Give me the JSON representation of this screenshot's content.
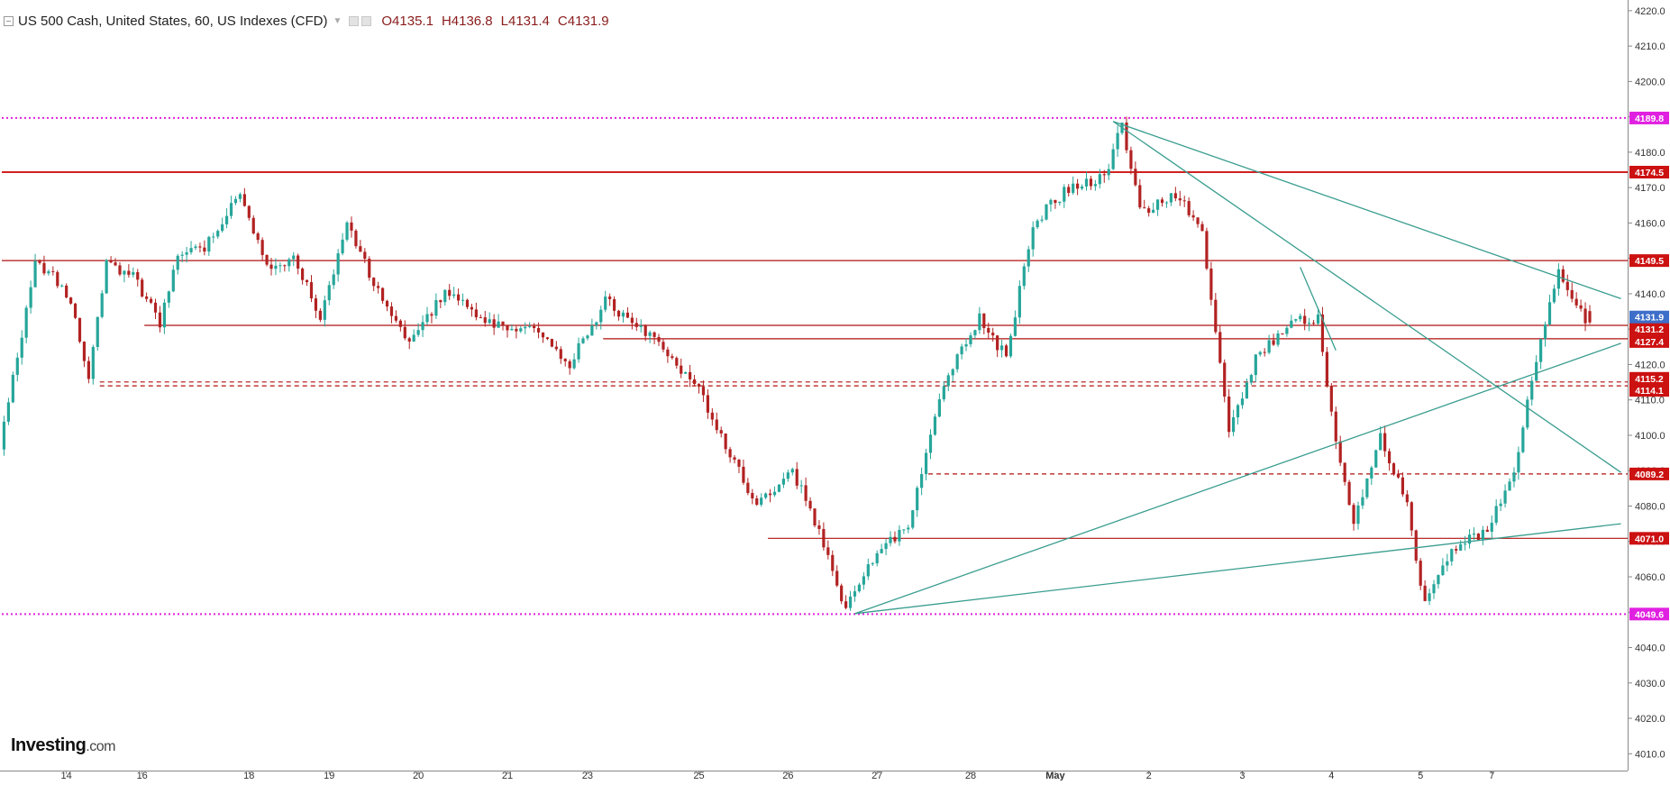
{
  "header": {
    "symbol": "US 500 Cash, United States, 60, US Indexes (CFD)",
    "open": "O4135.1",
    "high": "H4136.8",
    "low": "L4131.4",
    "close": "C4131.9"
  },
  "logo": {
    "brand": "Investing",
    "suffix": ".com"
  },
  "colors": {
    "up": "#26a69a",
    "down": "#b22222",
    "resistance": "#cc0000",
    "extreme": "#e020e0",
    "trendline": "#3a9d8f",
    "last_price": "#3d6ec9"
  },
  "chart_data": {
    "type": "candlestick",
    "title": "US 500 Cash, United States, 60, US Indexes (CFD)",
    "timeframe": "60",
    "ohlc_last": {
      "open": 4135.1,
      "high": 4136.8,
      "low": 4131.4,
      "close": 4131.9
    },
    "x_tick_labels": [
      "14",
      "16",
      "18",
      "19",
      "20",
      "21",
      "23",
      "25",
      "26",
      "27",
      "28",
      "May",
      "2",
      "3",
      "4",
      "5",
      "7"
    ],
    "y_ticks": [
      4010.0,
      4020.0,
      4030.0,
      4040.0,
      4050.0,
      4060.0,
      4070.0,
      4080.0,
      4090.0,
      4100.0,
      4110.0,
      4120.0,
      4130.0,
      4140.0,
      4150.0,
      4160.0,
      4170.0,
      4180.0,
      4190.0,
      4200.0,
      4210.0,
      4220.0
    ],
    "ylim": [
      4006,
      4222
    ],
    "grid": false,
    "last_price": 4131.9,
    "price_path_anchors": [
      [
        0,
        4096
      ],
      [
        8,
        4148
      ],
      [
        12,
        4145
      ],
      [
        16,
        4138
      ],
      [
        20,
        4116
      ],
      [
        24,
        4148
      ],
      [
        30,
        4145
      ],
      [
        36,
        4132
      ],
      [
        40,
        4150
      ],
      [
        46,
        4153
      ],
      [
        54,
        4168
      ],
      [
        60,
        4147
      ],
      [
        66,
        4150
      ],
      [
        72,
        4134
      ],
      [
        78,
        4160
      ],
      [
        84,
        4143
      ],
      [
        92,
        4127
      ],
      [
        100,
        4140
      ],
      [
        110,
        4132
      ],
      [
        120,
        4130
      ],
      [
        128,
        4120
      ],
      [
        136,
        4138
      ],
      [
        146,
        4128
      ],
      [
        156,
        4115
      ],
      [
        164,
        4095
      ],
      [
        170,
        4080
      ],
      [
        178,
        4090
      ],
      [
        184,
        4073
      ],
      [
        190,
        4051
      ],
      [
        196,
        4065
      ],
      [
        204,
        4075
      ],
      [
        212,
        4115
      ],
      [
        220,
        4133
      ],
      [
        226,
        4122
      ],
      [
        232,
        4160
      ],
      [
        240,
        4170
      ],
      [
        248,
        4173
      ],
      [
        252,
        4188
      ],
      [
        256,
        4163
      ],
      [
        264,
        4168
      ],
      [
        270,
        4158
      ],
      [
        276,
        4100
      ],
      [
        282,
        4122
      ],
      [
        290,
        4132
      ],
      [
        296,
        4133
      ],
      [
        300,
        4098
      ],
      [
        304,
        4075
      ],
      [
        310,
        4100
      ],
      [
        316,
        4080
      ],
      [
        320,
        4052
      ],
      [
        326,
        4068
      ],
      [
        334,
        4073
      ],
      [
        340,
        4090
      ],
      [
        346,
        4128
      ],
      [
        350,
        4147
      ],
      [
        356,
        4132
      ]
    ],
    "series": [
      {
        "values": [
          4131.2,
          4127.4,
          4114.1
        ]
      }
    ],
    "horizontal_levels": [
      {
        "price": 4189.8,
        "label": "4189.8",
        "style": "dotted",
        "kind": "extreme",
        "x_start": 0
      },
      {
        "price": 4174.5,
        "label": "4174.5",
        "style": "solid",
        "kind": "resistance",
        "x_start": 0
      },
      {
        "price": 4149.5,
        "label": "4149.5",
        "style": "solid",
        "kind": "level",
        "x_start": 0
      },
      {
        "price": 4131.2,
        "label": "4131.2",
        "style": "solid",
        "kind": "level",
        "x_start": 32
      },
      {
        "price": 4127.4,
        "label": "4127.4",
        "style": "solid",
        "kind": "level",
        "x_start": 135
      },
      {
        "price": 4115.2,
        "label": "4115.2",
        "style": "dashed",
        "kind": "level",
        "x_start": 22
      },
      {
        "price": 4114.1,
        "label": "4114.1",
        "style": "dashed",
        "kind": "level",
        "x_start": 22
      },
      {
        "price": 4089.2,
        "label": "4089.2",
        "style": "dashed",
        "kind": "level",
        "x_start": 208
      },
      {
        "price": 4071.0,
        "label": "4071.0",
        "style": "solid",
        "kind": "level",
        "x_start": 172
      },
      {
        "price": 4049.6,
        "label": "4049.6",
        "style": "dotted",
        "kind": "extreme",
        "x_start": 0
      }
    ],
    "trendlines": [
      {
        "from": [
          249,
          4188.7
        ],
        "to": [
          363,
          4138.6
        ]
      },
      {
        "from": [
          249,
          4188.7
        ],
        "to": [
          363,
          4089.5
        ]
      },
      {
        "from": [
          191,
          4049.6
        ],
        "to": [
          363,
          4126.0
        ]
      },
      {
        "from": [
          191,
          4049.6
        ],
        "to": [
          363,
          4075.0
        ]
      },
      {
        "from": [
          291,
          4147.5
        ],
        "to": [
          299,
          4124.0
        ]
      }
    ]
  }
}
